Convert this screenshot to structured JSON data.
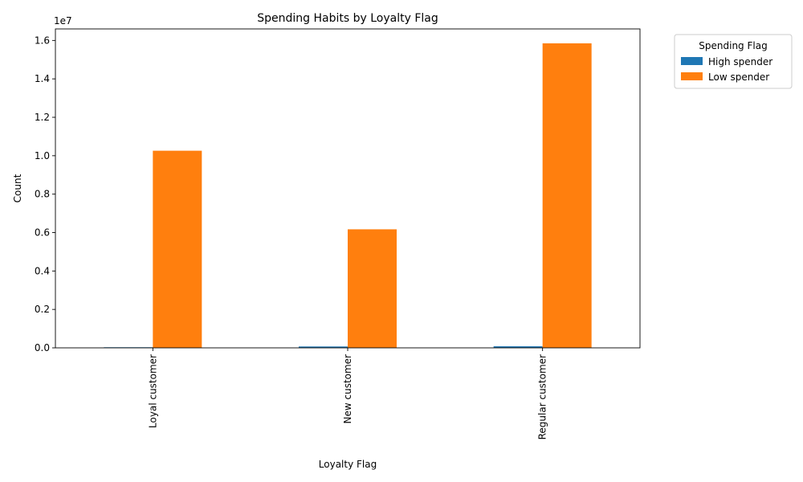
{
  "chart_data": {
    "type": "bar",
    "title": "Spending Habits by Loyalty Flag",
    "xlabel": "Loyalty Flag",
    "ylabel": "Count",
    "offset_label": "1e7",
    "categories": [
      "Loyal customer",
      "New customer",
      "Regular customer"
    ],
    "series": [
      {
        "name": "High spender",
        "color": "#1f77b4",
        "values": [
          30000,
          70000,
          80000
        ]
      },
      {
        "name": "Low spender",
        "color": "#ff7f0e",
        "values": [
          10260000,
          6170000,
          15850000
        ]
      }
    ],
    "ylim": [
      0,
      16600000
    ],
    "yticks": [
      0,
      2000000,
      4000000,
      6000000,
      8000000,
      10000000,
      12000000,
      14000000,
      16000000
    ],
    "ytick_labels": [
      "0.0",
      "0.2",
      "0.4",
      "0.6",
      "0.8",
      "1.0",
      "1.2",
      "1.4",
      "1.6"
    ],
    "legend": {
      "title": "Spending Flag",
      "position": "outside-top-right"
    },
    "grid": false
  }
}
